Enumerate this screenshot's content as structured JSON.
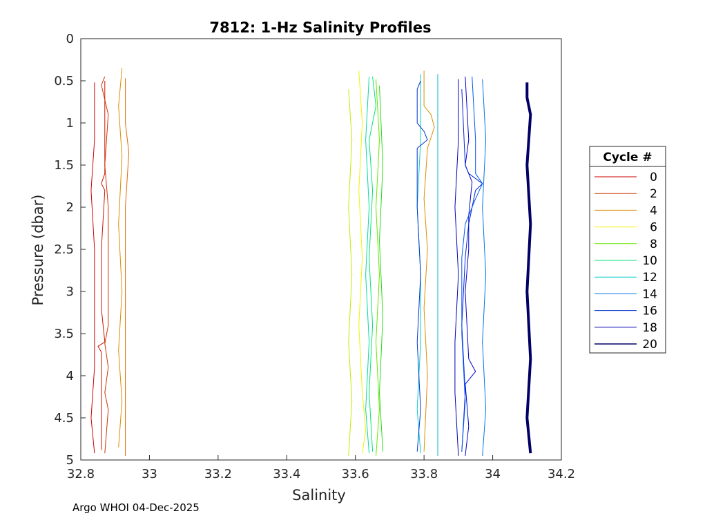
{
  "chart_data": {
    "type": "line",
    "title": "7812: 1-Hz Salinity Profiles",
    "xlabel": "Salinity",
    "ylabel": "Pressure (dbar)",
    "xlim": [
      32.8,
      34.2
    ],
    "ylim": [
      0,
      5
    ],
    "y_reversed": true,
    "grid": true,
    "xticks": [
      "32.8",
      "33",
      "33.2",
      "33.4",
      "33.6",
      "33.8",
      "34",
      "34.2"
    ],
    "yticks": [
      "0",
      "0.5",
      "1",
      "1.5",
      "2",
      "2.5",
      "3",
      "3.5",
      "4",
      "4.5",
      "5"
    ],
    "legend": {
      "title": "Cycle #",
      "placement": "outside-right",
      "entries": [
        {
          "label": "0",
          "color": "#cc0000"
        },
        {
          "label": "2",
          "color": "#cc3300"
        },
        {
          "label": "4",
          "color": "#d98c00"
        },
        {
          "label": "6",
          "color": "#f2f200"
        },
        {
          "label": "8",
          "color": "#66e600"
        },
        {
          "label": "10",
          "color": "#00e673"
        },
        {
          "label": "12",
          "color": "#00cccc"
        },
        {
          "label": "14",
          "color": "#0073e6"
        },
        {
          "label": "16",
          "color": "#0033cc"
        },
        {
          "label": "18",
          "color": "#0000b3"
        },
        {
          "label": "20",
          "color": "#000066"
        }
      ]
    },
    "series": [
      {
        "color": "#cc0000",
        "width": 1,
        "points": [
          [
            32.84,
            0.52
          ],
          [
            32.84,
            1.2
          ],
          [
            32.83,
            1.8
          ],
          [
            32.84,
            2.5
          ],
          [
            32.84,
            3.2
          ],
          [
            32.84,
            3.9
          ],
          [
            32.83,
            4.5
          ],
          [
            32.84,
            4.92
          ]
        ]
      },
      {
        "color": "#cc1100",
        "width": 1,
        "points": [
          [
            32.87,
            0.5
          ],
          [
            32.87,
            1.2
          ],
          [
            32.87,
            1.6
          ],
          [
            32.86,
            1.72
          ],
          [
            32.87,
            1.8
          ],
          [
            32.86,
            2.5
          ],
          [
            32.86,
            3.2
          ],
          [
            32.87,
            3.6
          ],
          [
            32.85,
            3.65
          ],
          [
            32.86,
            3.72
          ],
          [
            32.86,
            4.3
          ],
          [
            32.86,
            4.88
          ]
        ]
      },
      {
        "color": "#cc3300",
        "width": 1,
        "points": [
          [
            32.87,
            0.45
          ],
          [
            32.86,
            0.55
          ],
          [
            32.88,
            0.9
          ],
          [
            32.87,
            1.5
          ],
          [
            32.88,
            2.0
          ],
          [
            32.88,
            2.6
          ],
          [
            32.88,
            3.4
          ],
          [
            32.87,
            3.62
          ],
          [
            32.88,
            3.9
          ],
          [
            32.87,
            4.2
          ],
          [
            32.88,
            4.4
          ],
          [
            32.87,
            4.92
          ]
        ]
      },
      {
        "color": "#d98c00",
        "width": 1,
        "points": [
          [
            32.92,
            0.35
          ],
          [
            32.91,
            0.8
          ],
          [
            32.92,
            1.4
          ],
          [
            32.91,
            2.2
          ],
          [
            32.92,
            3.0
          ],
          [
            32.91,
            3.7
          ],
          [
            32.92,
            4.3
          ],
          [
            32.91,
            4.85
          ]
        ]
      },
      {
        "color": "#e06b00",
        "width": 1,
        "points": [
          [
            32.93,
            0.47
          ],
          [
            32.93,
            1.0
          ],
          [
            32.94,
            1.35
          ],
          [
            32.93,
            2.0
          ],
          [
            32.93,
            2.8
          ],
          [
            32.93,
            3.6
          ],
          [
            32.93,
            4.4
          ],
          [
            32.93,
            4.95
          ]
        ]
      },
      {
        "color": "#c8e600",
        "width": 1,
        "points": [
          [
            33.58,
            0.6
          ],
          [
            33.59,
            1.2
          ],
          [
            33.58,
            2.0
          ],
          [
            33.59,
            2.8
          ],
          [
            33.58,
            3.6
          ],
          [
            33.59,
            4.3
          ],
          [
            33.58,
            4.95
          ]
        ]
      },
      {
        "color": "#f2f200",
        "width": 1,
        "points": [
          [
            33.61,
            0.38
          ],
          [
            33.62,
            1.0
          ],
          [
            33.61,
            1.8
          ],
          [
            33.62,
            2.6
          ],
          [
            33.61,
            3.4
          ],
          [
            33.62,
            4.2
          ],
          [
            33.63,
            4.65
          ],
          [
            33.62,
            4.92
          ]
        ]
      },
      {
        "color": "#66e600",
        "width": 1,
        "points": [
          [
            33.66,
            0.48
          ],
          [
            33.67,
            1.2
          ],
          [
            33.66,
            2.0
          ],
          [
            33.67,
            2.8
          ],
          [
            33.66,
            3.6
          ],
          [
            33.67,
            4.4
          ],
          [
            33.66,
            4.95
          ]
        ]
      },
      {
        "color": "#00e673",
        "width": 1,
        "points": [
          [
            33.65,
            0.45
          ],
          [
            33.66,
            0.8
          ],
          [
            33.64,
            1.2
          ],
          [
            33.65,
            1.8
          ],
          [
            33.64,
            2.6
          ],
          [
            33.65,
            3.4
          ],
          [
            33.64,
            4.2
          ],
          [
            33.65,
            4.9
          ]
        ]
      },
      {
        "color": "#22dd11",
        "width": 1,
        "points": [
          [
            33.67,
            0.56
          ],
          [
            33.68,
            1.5
          ],
          [
            33.67,
            2.4
          ],
          [
            33.68,
            3.3
          ],
          [
            33.67,
            4.2
          ],
          [
            33.68,
            4.9
          ]
        ]
      },
      {
        "color": "#00d9a0",
        "width": 1,
        "points": [
          [
            33.64,
            0.45
          ],
          [
            33.63,
            1.2
          ],
          [
            33.64,
            2.0
          ],
          [
            33.63,
            2.8
          ],
          [
            33.64,
            3.6
          ],
          [
            33.63,
            4.4
          ],
          [
            33.64,
            4.92
          ]
        ]
      },
      {
        "color": "#00cccc",
        "width": 1,
        "points": [
          [
            33.79,
            0.42
          ],
          [
            33.79,
            1.2
          ],
          [
            33.78,
            2.0
          ],
          [
            33.79,
            2.8
          ],
          [
            33.79,
            3.6
          ],
          [
            33.78,
            4.4
          ],
          [
            33.79,
            4.92
          ]
        ]
      },
      {
        "color": "#d98c00",
        "width": 1,
        "points": [
          [
            33.8,
            0.38
          ],
          [
            33.8,
            0.8
          ],
          [
            33.82,
            0.9
          ],
          [
            33.83,
            1.05
          ],
          [
            33.81,
            1.3
          ],
          [
            33.8,
            1.9
          ],
          [
            33.81,
            2.5
          ],
          [
            33.8,
            3.2
          ],
          [
            33.81,
            4.0
          ],
          [
            33.8,
            4.9
          ]
        ]
      },
      {
        "color": "#00b3cc",
        "width": 1,
        "points": [
          [
            33.84,
            0.42
          ],
          [
            33.84,
            1.2
          ],
          [
            33.84,
            2.0
          ],
          [
            33.84,
            2.8
          ],
          [
            33.84,
            3.6
          ],
          [
            33.84,
            4.4
          ],
          [
            33.84,
            4.95
          ]
        ]
      },
      {
        "color": "#0033cc",
        "width": 1,
        "points": [
          [
            33.79,
            0.5
          ],
          [
            33.78,
            0.6
          ],
          [
            33.78,
            1.0
          ],
          [
            33.8,
            1.1
          ],
          [
            33.81,
            1.2
          ],
          [
            33.78,
            1.3
          ],
          [
            33.78,
            2.0
          ],
          [
            33.79,
            2.8
          ],
          [
            33.78,
            3.6
          ],
          [
            33.79,
            4.4
          ],
          [
            33.78,
            4.9
          ]
        ]
      },
      {
        "color": "#0000b3",
        "width": 1,
        "points": [
          [
            33.9,
            0.48
          ],
          [
            33.9,
            1.2
          ],
          [
            33.89,
            2.0
          ],
          [
            33.9,
            2.8
          ],
          [
            33.89,
            3.6
          ],
          [
            33.89,
            4.2
          ],
          [
            33.9,
            4.95
          ]
        ]
      },
      {
        "color": "#0000cc",
        "width": 1,
        "points": [
          [
            33.92,
            0.45
          ],
          [
            33.93,
            1.2
          ],
          [
            33.92,
            1.5
          ],
          [
            33.94,
            1.7
          ],
          [
            33.93,
            2.1
          ],
          [
            33.93,
            2.5
          ],
          [
            33.92,
            3.0
          ],
          [
            33.93,
            3.8
          ],
          [
            33.95,
            3.95
          ],
          [
            33.92,
            4.1
          ],
          [
            33.93,
            4.6
          ],
          [
            33.92,
            4.95
          ]
        ]
      },
      {
        "color": "#0022dd",
        "width": 1,
        "points": [
          [
            33.91,
            0.6
          ],
          [
            33.92,
            1.5
          ],
          [
            33.93,
            1.6
          ],
          [
            33.97,
            1.72
          ],
          [
            33.95,
            1.8
          ],
          [
            33.93,
            2.2
          ],
          [
            33.92,
            2.6
          ],
          [
            33.91,
            3.4
          ],
          [
            33.92,
            4.2
          ],
          [
            33.91,
            4.9
          ]
        ]
      },
      {
        "color": "#0055ee",
        "width": 1,
        "points": [
          [
            33.94,
            0.45
          ],
          [
            33.95,
            1.2
          ],
          [
            33.95,
            1.6
          ],
          [
            33.97,
            1.72
          ],
          [
            33.95,
            1.9
          ],
          [
            33.92,
            2.2
          ],
          [
            33.91,
            2.6
          ],
          [
            33.91,
            3.5
          ],
          [
            33.92,
            4.3
          ],
          [
            33.91,
            4.9
          ]
        ]
      },
      {
        "color": "#0073e6",
        "width": 1,
        "points": [
          [
            33.97,
            0.48
          ],
          [
            33.98,
            1.2
          ],
          [
            33.97,
            2.0
          ],
          [
            33.98,
            2.8
          ],
          [
            33.97,
            3.6
          ],
          [
            33.98,
            4.4
          ],
          [
            33.97,
            4.95
          ]
        ]
      },
      {
        "color": "#000066",
        "width": 4,
        "points": [
          [
            34.1,
            0.52
          ],
          [
            34.1,
            0.7
          ],
          [
            34.11,
            0.9
          ],
          [
            34.1,
            1.5
          ],
          [
            34.11,
            2.2
          ],
          [
            34.1,
            3.0
          ],
          [
            34.11,
            3.8
          ],
          [
            34.1,
            4.5
          ],
          [
            34.11,
            4.92
          ]
        ]
      }
    ]
  },
  "footer": "Argo WHOI 04-Dec-2025"
}
